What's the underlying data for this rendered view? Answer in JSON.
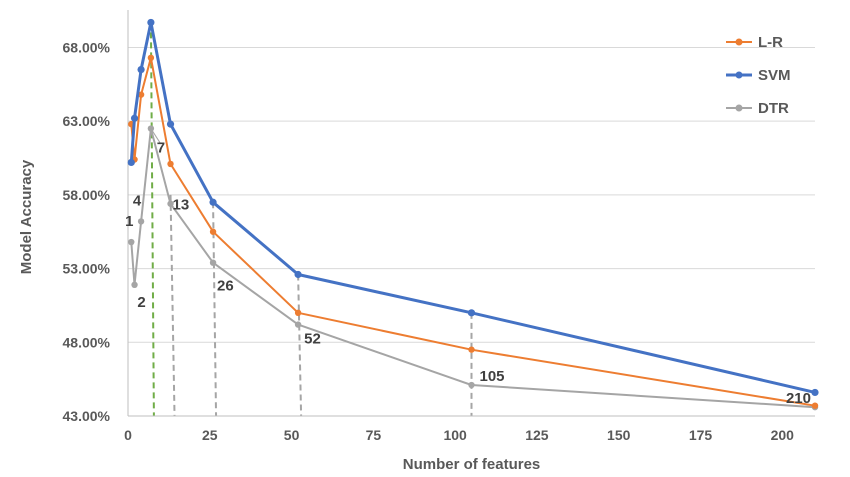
{
  "chart_data": {
    "type": "line",
    "xlabel": "Number of features",
    "ylabel": "Model Accuracy",
    "xlim": [
      0,
      210
    ],
    "ylim": [
      0.43,
      0.7
    ],
    "xticks": [
      0,
      25,
      50,
      75,
      100,
      125,
      150,
      175,
      200
    ],
    "xtick_labels": [
      "0",
      "25",
      "50",
      "75",
      "100",
      "125",
      "150",
      "175",
      "200"
    ],
    "yticks": [
      0.43,
      0.48,
      0.53,
      0.58,
      0.63,
      0.68
    ],
    "ytick_labels": [
      "43.00%",
      "48.00%",
      "53.00%",
      "58.00%",
      "63.00%",
      "68.00%"
    ],
    "grid": "horizontal",
    "legend": "top-right",
    "series": [
      {
        "name": "L-R",
        "color": "#ED7D31",
        "x": [
          1,
          2,
          4,
          7,
          13,
          26,
          52,
          105,
          210
        ],
        "y": [
          0.628,
          0.604,
          0.648,
          0.673,
          0.601,
          0.555,
          0.5,
          0.475,
          0.437
        ]
      },
      {
        "name": "SVM",
        "color": "#4472C4",
        "x": [
          1,
          2,
          4,
          7,
          13,
          26,
          52,
          105,
          210
        ],
        "y": [
          0.602,
          0.632,
          0.665,
          0.697,
          0.628,
          0.575,
          0.526,
          0.5,
          0.446
        ]
      },
      {
        "name": "DTR",
        "color": "#A5A5A5",
        "x": [
          1,
          2,
          4,
          7,
          13,
          26,
          52,
          105,
          210
        ],
        "y": [
          0.548,
          0.519,
          0.562,
          0.625,
          0.574,
          0.534,
          0.492,
          0.451,
          0.436
        ]
      }
    ],
    "annotations": [
      {
        "text": "1",
        "x": 1
      },
      {
        "text": "2",
        "x": 2
      },
      {
        "text": "4",
        "x": 4
      },
      {
        "text": "7",
        "x": 7
      },
      {
        "text": "13",
        "x": 13
      },
      {
        "text": "26",
        "x": 26
      },
      {
        "text": "52",
        "x": 52
      },
      {
        "text": "105",
        "x": 105
      },
      {
        "text": "210",
        "x": 210
      }
    ],
    "dropline_color_default": "#A5A5A5",
    "dropline_color_highlight": "#70AD47"
  }
}
